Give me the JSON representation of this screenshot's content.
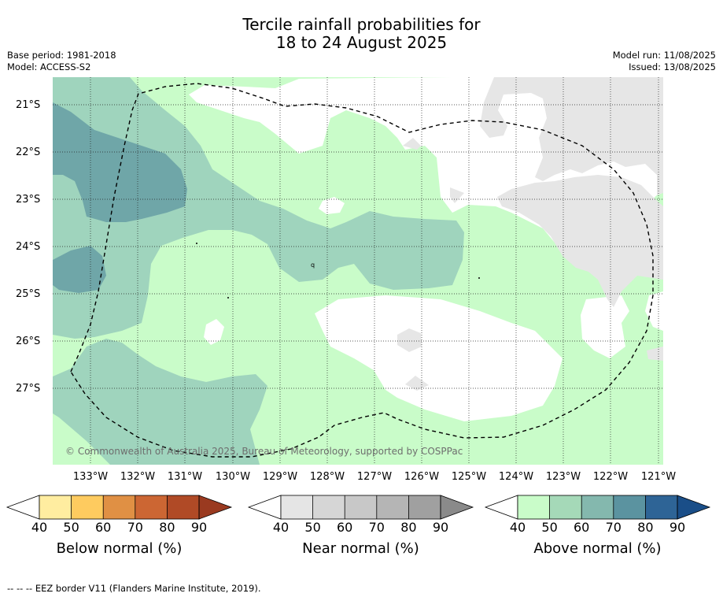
{
  "title": {
    "line1": "Tercile rainfall probabilities for",
    "line2": "18 to 24 August 2025"
  },
  "meta": {
    "base_period": "Base period: 1981-2018",
    "model": "Model: ACCESS-S2",
    "model_run": "Model run: 11/08/2025",
    "issued": "Issued: 13/08/2025"
  },
  "map": {
    "copyright": "© Commonwealth of Australia 2025, Bureau of Meteorology, supported by COSPPac",
    "lat_labels": [
      "21°S",
      "22°S",
      "23°S",
      "24°S",
      "25°S",
      "26°S",
      "27°S"
    ],
    "lon_labels": [
      "133°W",
      "132°W",
      "131°W",
      "130°W",
      "129°W",
      "128°W",
      "127°W",
      "126°W",
      "125°W",
      "124°W",
      "123°W",
      "122°W",
      "121°W"
    ],
    "colors": {
      "above_50": "#c9fcc9",
      "above_60": "#9fd4bd",
      "above_70": "#6fa6a8",
      "near_50": "#e6e6e6",
      "white": "#ffffff"
    },
    "marker": "q"
  },
  "colorbars": [
    {
      "label": "Below normal (%)",
      "ticks": [
        "40",
        "50",
        "60",
        "70",
        "80",
        "90"
      ],
      "colors": [
        "#ffeda0",
        "#fecb5f",
        "#e09044",
        "#cc6633",
        "#b04a26"
      ],
      "over_color": "#9a3a20"
    },
    {
      "label": "Near normal (%)",
      "ticks": [
        "40",
        "50",
        "60",
        "70",
        "80",
        "90"
      ],
      "colors": [
        "#e5e5e5",
        "#d6d6d6",
        "#c8c8c8",
        "#b5b5b5",
        "#a0a0a0"
      ],
      "over_color": "#8a8a8a"
    },
    {
      "label": "Above normal (%)",
      "ticks": [
        "40",
        "50",
        "60",
        "70",
        "80",
        "90"
      ],
      "colors": [
        "#c9fcc9",
        "#a5d9b8",
        "#84b8ae",
        "#5b93a0",
        "#2e6496"
      ],
      "over_color": "#1a4e88"
    }
  ],
  "footer": "--  --  -- EEZ border V11 (Flanders Marine Institute, 2019)."
}
